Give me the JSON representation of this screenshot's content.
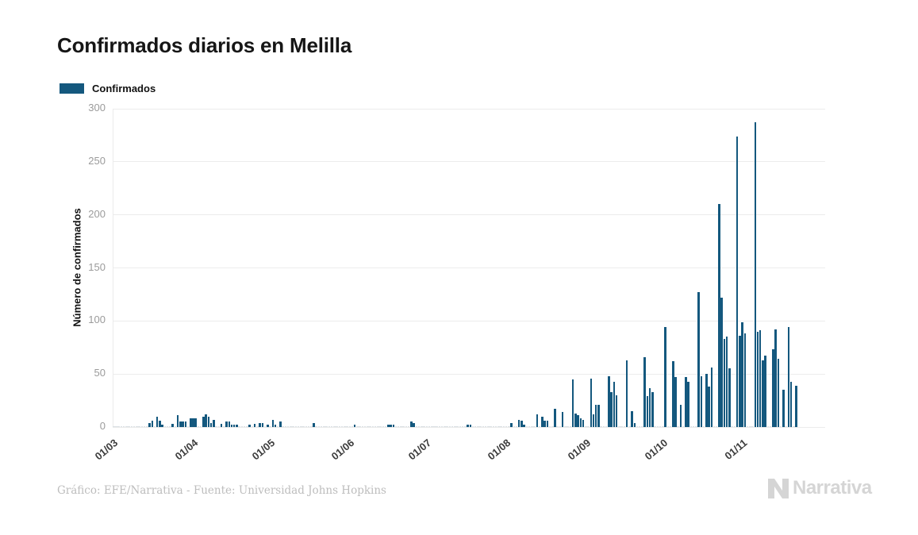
{
  "header": {
    "title": "Confirmados diarios en Melilla"
  },
  "legend": {
    "label": "Confirmados"
  },
  "footer": {
    "credit": "Gráfico: EFE/Narrativa - Fuente: Universidad Johns Hopkins",
    "logo_text": "Narrativa"
  },
  "colors": {
    "bar": "#14587e",
    "zero_stub": "#d9dee2",
    "grid": "#ececec",
    "axis_line": "#ebebeb",
    "title_text": "#161616",
    "y_tick_text": "#9b9b9b",
    "x_tick_text": "#3c3c3c",
    "footer_text": "#bdbdbd",
    "logo": "#d5d5d5"
  },
  "chart_data": {
    "type": "bar",
    "title": "Confirmados diarios en Melilla",
    "series_name": "Confirmados",
    "ylabel": "Número de confirmados",
    "xlabel": "",
    "ylim": [
      0,
      300
    ],
    "yticks": [
      0,
      50,
      100,
      150,
      200,
      250,
      300
    ],
    "grid": "horizontal",
    "legend_position": "top-left",
    "x_tick_labels": [
      "01/03",
      "01/04",
      "01/05",
      "01/06",
      "01/07",
      "01/08",
      "01/09",
      "01/10",
      "01/11"
    ],
    "x_tick_day_offsets": [
      0,
      31,
      61,
      92,
      122,
      153,
      184,
      214,
      245
    ],
    "start_day_label": "01/03",
    "n_days": 267,
    "note": "daily bars; day offset 0 = 01/03 (March 1); missing offsets = 0 confirmed",
    "values_by_day_offset": {
      "14": 4,
      "15": 6,
      "17": 10,
      "18": 6,
      "19": 2,
      "23": 3,
      "25": 11,
      "26": 5,
      "27": 5,
      "28": 5,
      "30": 8,
      "31": 8,
      "32": 8,
      "35": 10,
      "36": 12,
      "37": 10,
      "38": 4,
      "39": 7,
      "42": 3,
      "44": 5,
      "45": 5,
      "46": 2,
      "47": 2,
      "48": 2,
      "53": 2,
      "55": 3,
      "57": 4,
      "58": 4,
      "60": 2,
      "62": 7,
      "63": 2,
      "65": 5,
      "78": 4,
      "94": 2,
      "107": 2,
      "108": 2,
      "109": 2,
      "116": 5,
      "117": 4,
      "138": 2,
      "139": 2,
      "155": 4,
      "158": 7,
      "159": 6,
      "160": 2,
      "165": 12,
      "167": 10,
      "168": 6,
      "169": 6,
      "172": 17,
      "175": 14,
      "179": 45,
      "180": 13,
      "181": 11,
      "182": 8,
      "183": 7,
      "186": 46,
      "187": 12,
      "188": 21,
      "189": 21,
      "193": 48,
      "194": 33,
      "195": 43,
      "196": 30,
      "200": 63,
      "202": 15,
      "203": 4,
      "207": 66,
      "208": 29,
      "209": 37,
      "210": 33,
      "215": 94,
      "218": 62,
      "219": 47,
      "221": 21,
      "223": 47,
      "224": 43,
      "228": 127,
      "229": 48,
      "231": 50,
      "232": 38,
      "233": 56,
      "236": 210,
      "237": 122,
      "238": 83,
      "239": 85,
      "240": 55,
      "243": 274,
      "244": 86,
      "245": 99,
      "246": 88,
      "250": 287,
      "251": 90,
      "252": 91,
      "253": 63,
      "254": 67,
      "257": 73,
      "258": 92,
      "259": 64,
      "261": 35,
      "263": 94,
      "264": 43,
      "266": 39
    }
  }
}
